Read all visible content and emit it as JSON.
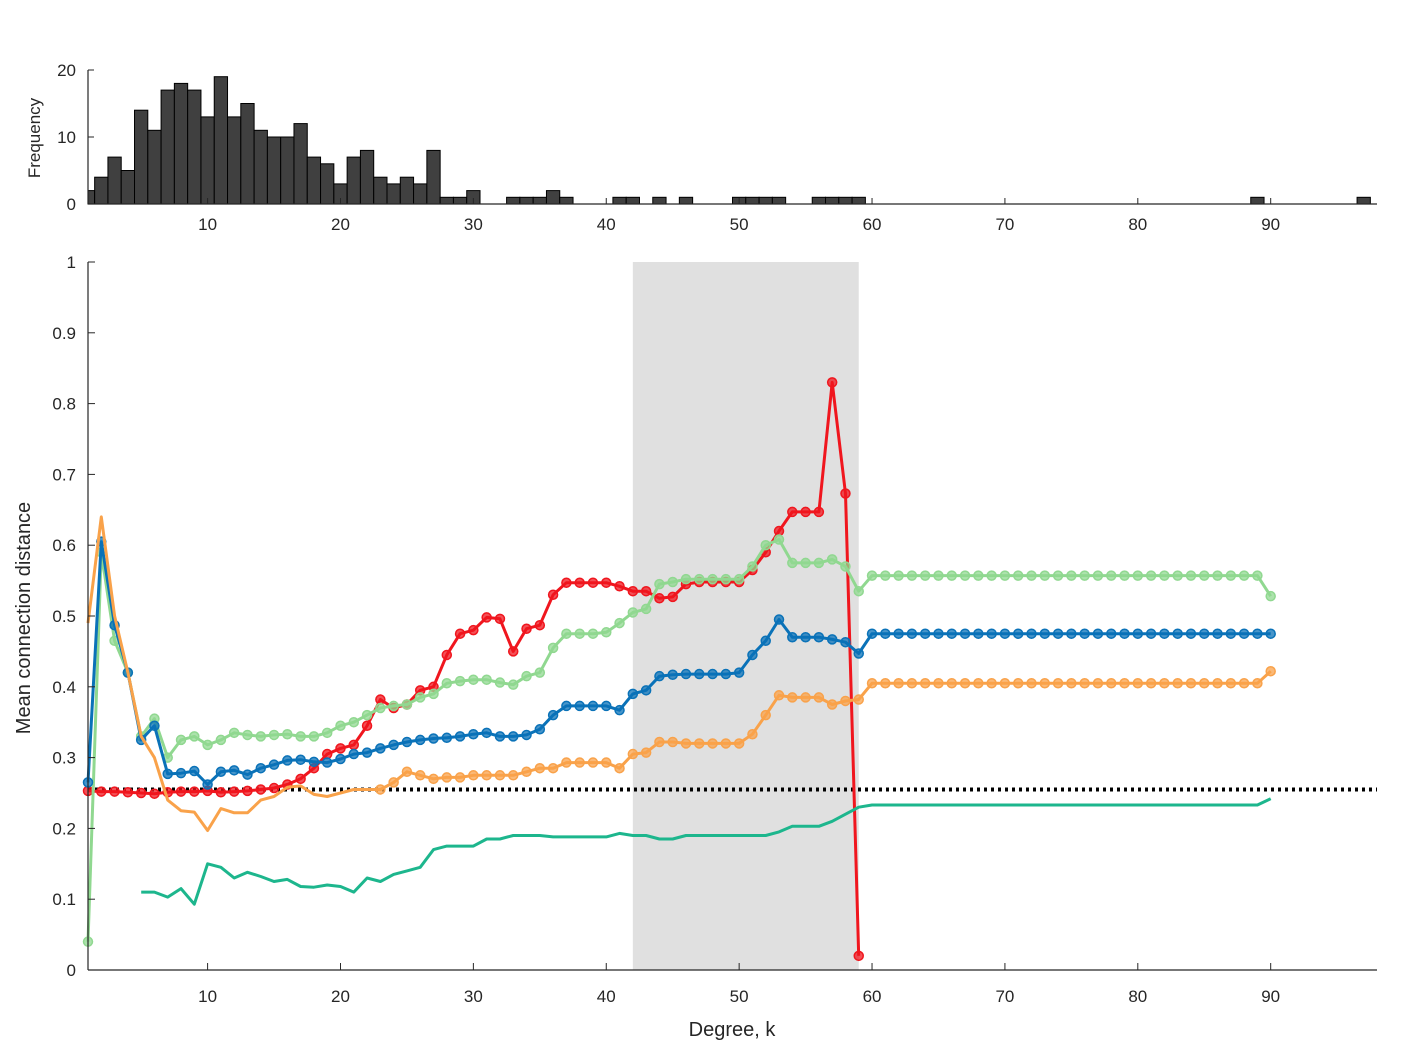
{
  "chart_data": [
    {
      "type": "bar",
      "panel": "histogram",
      "ylabel": "Frequency",
      "xlim": [
        1,
        98
      ],
      "ylim": [
        0,
        20
      ],
      "xticks": [
        10,
        20,
        30,
        40,
        50,
        60,
        70,
        80,
        90
      ],
      "yticks": [
        0,
        10,
        20
      ],
      "bar_color": "#404040",
      "x": [
        1,
        2,
        3,
        4,
        5,
        6,
        7,
        8,
        9,
        10,
        11,
        12,
        13,
        14,
        15,
        16,
        17,
        18,
        19,
        20,
        21,
        22,
        23,
        24,
        25,
        26,
        27,
        28,
        29,
        30,
        33,
        34,
        35,
        36,
        37,
        41,
        42,
        44,
        46,
        50,
        51,
        52,
        53,
        56,
        57,
        58,
        59,
        89,
        97
      ],
      "values": [
        2,
        4,
        7,
        5,
        14,
        11,
        17,
        18,
        17,
        13,
        19,
        13,
        15,
        11,
        10,
        10,
        12,
        7,
        6,
        3,
        7,
        8,
        4,
        3,
        4,
        3,
        8,
        1,
        1,
        2,
        1,
        1,
        1,
        2,
        1,
        1,
        1,
        1,
        1,
        1,
        1,
        1,
        1,
        1,
        1,
        1,
        1,
        1,
        1
      ]
    },
    {
      "type": "line",
      "panel": "main",
      "xlabel": "Degree, k",
      "ylabel": "Mean connection distance",
      "xlim": [
        1,
        98
      ],
      "ylim": [
        0,
        1
      ],
      "xticks": [
        10,
        20,
        30,
        40,
        50,
        60,
        70,
        80,
        90
      ],
      "yticks": [
        0,
        0.1,
        0.2,
        0.3,
        0.4,
        0.5,
        0.6,
        0.7,
        0.8,
        0.9,
        1
      ],
      "shaded_region": [
        42,
        59
      ],
      "reference_line": 0.255,
      "series": [
        {
          "color": "#f0161e",
          "markers": true,
          "x": [
            1,
            2,
            3,
            4,
            5,
            6,
            7,
            8,
            9,
            10,
            11,
            12,
            13,
            14,
            15,
            16,
            17,
            18,
            19,
            20,
            21,
            22,
            23,
            24,
            25,
            26,
            27,
            28,
            29,
            30,
            31,
            32,
            33,
            34,
            35,
            36,
            37,
            38,
            39,
            40,
            41,
            42,
            43,
            44,
            45,
            46,
            47,
            48,
            49,
            50,
            51,
            52,
            53,
            54,
            55,
            56,
            57,
            58,
            59
          ],
          "values": [
            0.253,
            0.252,
            0.252,
            0.251,
            0.25,
            0.249,
            0.251,
            0.252,
            0.252,
            0.253,
            0.251,
            0.252,
            0.253,
            0.255,
            0.257,
            0.262,
            0.27,
            0.285,
            0.305,
            0.313,
            0.318,
            0.345,
            0.382,
            0.37,
            0.375,
            0.395,
            0.4,
            0.445,
            0.475,
            0.48,
            0.498,
            0.496,
            0.45,
            0.482,
            0.487,
            0.53,
            0.547,
            0.547,
            0.547,
            0.547,
            0.542,
            0.535,
            0.535,
            0.525,
            0.527,
            0.545,
            0.548,
            0.548,
            0.548,
            0.548,
            0.565,
            0.59,
            0.62,
            0.647,
            0.647,
            0.647,
            0.83,
            0.673,
            0.02
          ]
        },
        {
          "color": "#90d890",
          "markers": true,
          "x": [
            1,
            2,
            3,
            4,
            5,
            6,
            7,
            8,
            9,
            10,
            11,
            12,
            13,
            14,
            15,
            16,
            17,
            18,
            19,
            20,
            21,
            22,
            23,
            24,
            25,
            26,
            27,
            28,
            29,
            30,
            31,
            32,
            33,
            34,
            35,
            36,
            37,
            38,
            39,
            40,
            41,
            42,
            43,
            44,
            45,
            46,
            47,
            48,
            49,
            50,
            51,
            52,
            53,
            54,
            55,
            56,
            57,
            58,
            59,
            60,
            61,
            62,
            63,
            64,
            65,
            66,
            67,
            68,
            69,
            70,
            71,
            72,
            73,
            74,
            75,
            76,
            77,
            78,
            79,
            80,
            81,
            82,
            83,
            84,
            85,
            86,
            87,
            88,
            89,
            90
          ],
          "values": [
            0.04,
            0.59,
            0.465,
            0.42,
            0.33,
            0.355,
            0.3,
            0.325,
            0.33,
            0.318,
            0.325,
            0.335,
            0.332,
            0.33,
            0.332,
            0.333,
            0.33,
            0.33,
            0.335,
            0.345,
            0.35,
            0.36,
            0.37,
            0.373,
            0.375,
            0.385,
            0.39,
            0.405,
            0.408,
            0.41,
            0.41,
            0.406,
            0.403,
            0.415,
            0.42,
            0.455,
            0.475,
            0.475,
            0.475,
            0.477,
            0.49,
            0.505,
            0.51,
            0.545,
            0.548,
            0.552,
            0.552,
            0.552,
            0.552,
            0.552,
            0.57,
            0.6,
            0.608,
            0.575,
            0.575,
            0.575,
            0.58,
            0.57,
            0.535,
            0.557,
            0.557,
            0.557,
            0.557,
            0.557,
            0.557,
            0.557,
            0.557,
            0.557,
            0.557,
            0.557,
            0.557,
            0.557,
            0.557,
            0.557,
            0.557,
            0.557,
            0.557,
            0.557,
            0.557,
            0.557,
            0.557,
            0.557,
            0.557,
            0.557,
            0.557,
            0.557,
            0.557,
            0.557,
            0.557,
            0.528
          ]
        },
        {
          "color": "#0a72b8",
          "markers": true,
          "x": [
            1,
            2,
            3,
            4,
            5,
            6,
            7,
            8,
            9,
            10,
            11,
            12,
            13,
            14,
            15,
            16,
            17,
            18,
            19,
            20,
            21,
            22,
            23,
            24,
            25,
            26,
            27,
            28,
            29,
            30,
            31,
            32,
            33,
            34,
            35,
            36,
            37,
            38,
            39,
            40,
            41,
            42,
            43,
            44,
            45,
            46,
            47,
            48,
            49,
            50,
            51,
            52,
            53,
            54,
            55,
            56,
            57,
            58,
            59,
            60,
            61,
            62,
            63,
            64,
            65,
            66,
            67,
            68,
            69,
            70,
            71,
            72,
            73,
            74,
            75,
            76,
            77,
            78,
            79,
            80,
            81,
            82,
            83,
            84,
            85,
            86,
            87,
            88,
            89,
            90
          ],
          "values": [
            0.265,
            0.605,
            0.487,
            0.42,
            0.325,
            0.345,
            0.277,
            0.278,
            0.281,
            0.262,
            0.28,
            0.282,
            0.276,
            0.285,
            0.29,
            0.296,
            0.297,
            0.294,
            0.293,
            0.298,
            0.305,
            0.307,
            0.313,
            0.318,
            0.322,
            0.325,
            0.327,
            0.328,
            0.33,
            0.333,
            0.335,
            0.33,
            0.33,
            0.332,
            0.34,
            0.36,
            0.373,
            0.373,
            0.373,
            0.373,
            0.367,
            0.39,
            0.395,
            0.415,
            0.417,
            0.418,
            0.418,
            0.418,
            0.418,
            0.42,
            0.445,
            0.465,
            0.495,
            0.47,
            0.47,
            0.47,
            0.467,
            0.463,
            0.447,
            0.475,
            0.475,
            0.475,
            0.475,
            0.475,
            0.475,
            0.475,
            0.475,
            0.475,
            0.475,
            0.475,
            0.475,
            0.475,
            0.475,
            0.475,
            0.475,
            0.475,
            0.475,
            0.475,
            0.475,
            0.475,
            0.475,
            0.475,
            0.475,
            0.475,
            0.475,
            0.475,
            0.475,
            0.475,
            0.475,
            0.475
          ]
        },
        {
          "color": "#f9a24a",
          "markers": true,
          "marker_from_x": 23,
          "x": [
            1,
            2,
            3,
            4,
            5,
            6,
            7,
            8,
            9,
            10,
            11,
            12,
            13,
            14,
            15,
            16,
            17,
            18,
            19,
            20,
            21,
            22,
            23,
            24,
            25,
            26,
            27,
            28,
            29,
            30,
            31,
            32,
            33,
            34,
            35,
            36,
            37,
            38,
            39,
            40,
            41,
            42,
            43,
            44,
            45,
            46,
            47,
            48,
            49,
            50,
            51,
            52,
            53,
            54,
            55,
            56,
            57,
            58,
            59,
            60,
            61,
            62,
            63,
            64,
            65,
            66,
            67,
            68,
            69,
            70,
            71,
            72,
            73,
            74,
            75,
            76,
            77,
            78,
            79,
            80,
            81,
            82,
            83,
            84,
            85,
            86,
            87,
            88,
            89,
            90
          ],
          "values": [
            0.49,
            0.64,
            0.5,
            0.42,
            0.33,
            0.3,
            0.24,
            0.225,
            0.223,
            0.197,
            0.228,
            0.222,
            0.222,
            0.24,
            0.245,
            0.258,
            0.26,
            0.248,
            0.245,
            0.25,
            0.255,
            0.255,
            0.255,
            0.265,
            0.28,
            0.275,
            0.27,
            0.272,
            0.272,
            0.275,
            0.275,
            0.275,
            0.275,
            0.28,
            0.285,
            0.285,
            0.293,
            0.293,
            0.293,
            0.293,
            0.285,
            0.305,
            0.307,
            0.322,
            0.322,
            0.32,
            0.32,
            0.32,
            0.32,
            0.32,
            0.333,
            0.36,
            0.388,
            0.385,
            0.385,
            0.385,
            0.375,
            0.38,
            0.382,
            0.405,
            0.405,
            0.405,
            0.405,
            0.405,
            0.405,
            0.405,
            0.405,
            0.405,
            0.405,
            0.405,
            0.405,
            0.405,
            0.405,
            0.405,
            0.405,
            0.405,
            0.405,
            0.405,
            0.405,
            0.405,
            0.405,
            0.405,
            0.405,
            0.405,
            0.405,
            0.405,
            0.405,
            0.405,
            0.405,
            0.422
          ]
        },
        {
          "color": "#1db68d",
          "markers": false,
          "x": [
            5,
            6,
            7,
            8,
            9,
            10,
            11,
            12,
            13,
            14,
            15,
            16,
            17,
            18,
            19,
            20,
            21,
            22,
            23,
            24,
            25,
            26,
            27,
            28,
            29,
            30,
            31,
            32,
            33,
            34,
            35,
            36,
            37,
            38,
            39,
            40,
            41,
            42,
            43,
            44,
            45,
            46,
            47,
            48,
            49,
            50,
            51,
            52,
            53,
            54,
            55,
            56,
            57,
            58,
            59,
            60,
            61,
            62,
            63,
            64,
            65,
            66,
            67,
            68,
            69,
            70,
            71,
            72,
            73,
            74,
            75,
            76,
            77,
            78,
            79,
            80,
            81,
            82,
            83,
            84,
            85,
            86,
            87,
            88,
            89,
            90
          ],
          "values": [
            0.11,
            0.11,
            0.103,
            0.115,
            0.093,
            0.15,
            0.145,
            0.13,
            0.138,
            0.132,
            0.125,
            0.128,
            0.118,
            0.117,
            0.12,
            0.118,
            0.11,
            0.13,
            0.125,
            0.135,
            0.14,
            0.145,
            0.17,
            0.175,
            0.175,
            0.175,
            0.185,
            0.185,
            0.19,
            0.19,
            0.19,
            0.188,
            0.188,
            0.188,
            0.188,
            0.188,
            0.193,
            0.19,
            0.19,
            0.185,
            0.185,
            0.19,
            0.19,
            0.19,
            0.19,
            0.19,
            0.19,
            0.19,
            0.195,
            0.203,
            0.203,
            0.203,
            0.21,
            0.22,
            0.23,
            0.233,
            0.233,
            0.233,
            0.233,
            0.233,
            0.233,
            0.233,
            0.233,
            0.233,
            0.233,
            0.233,
            0.233,
            0.233,
            0.233,
            0.233,
            0.233,
            0.233,
            0.233,
            0.233,
            0.233,
            0.233,
            0.233,
            0.233,
            0.233,
            0.233,
            0.233,
            0.233,
            0.233,
            0.233,
            0.233,
            0.242
          ]
        }
      ]
    }
  ]
}
